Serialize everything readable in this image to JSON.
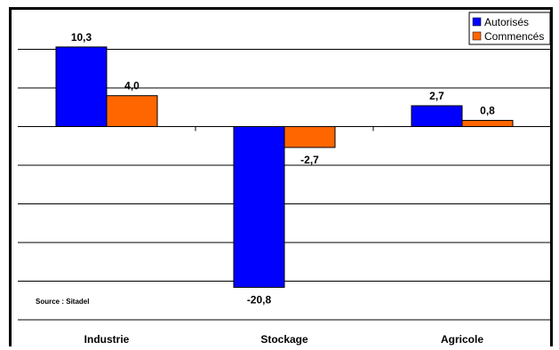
{
  "chart_data": {
    "type": "bar",
    "categories": [
      "Industrie",
      "Stockage",
      "Agricole"
    ],
    "series": [
      {
        "name": "Autorisés",
        "values": [
          10.3,
          -20.8,
          2.7
        ],
        "labels": [
          "10,3",
          "-20,8",
          "2,7"
        ],
        "color": "#0000ff"
      },
      {
        "name": "Commencés",
        "values": [
          4.0,
          -2.7,
          0.8
        ],
        "labels": [
          "4,0",
          "-2,7",
          "0,8"
        ],
        "color": "#ff6600"
      }
    ],
    "ylim": [
      -25,
      15
    ],
    "grid": true,
    "legend": "top-right",
    "annotation": "Source : Sitadel"
  }
}
